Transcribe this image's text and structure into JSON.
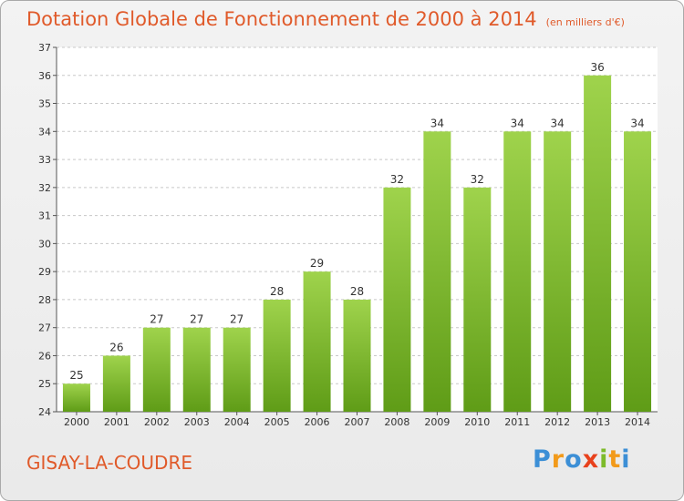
{
  "header": {
    "title": "Dotation Globale de Fonctionnement de 2000 à 2014",
    "subtitle": "(en milliers d'€)"
  },
  "footer": {
    "commune": "GISAY-LA-COUDRE",
    "logo": "Proxiti"
  },
  "colors": {
    "title": "#e05a2a",
    "bar_light": "#9fd34c",
    "bar_dark": "#5f9c17",
    "grid": "#c8c8c8"
  },
  "chart_data": {
    "type": "bar",
    "title": "Dotation Globale de Fonctionnement de 2000 à 2014",
    "subtitle": "(en milliers d'€)",
    "xlabel": "",
    "ylabel": "",
    "categories": [
      "2000",
      "2001",
      "2002",
      "2003",
      "2004",
      "2005",
      "2006",
      "2007",
      "2008",
      "2009",
      "2010",
      "2011",
      "2012",
      "2013",
      "2014"
    ],
    "values": [
      25,
      26,
      27,
      27,
      27,
      28,
      29,
      28,
      32,
      34,
      32,
      34,
      34,
      36,
      34
    ],
    "ylim": [
      24,
      37
    ],
    "yticks": [
      24,
      25,
      26,
      27,
      28,
      29,
      30,
      31,
      32,
      33,
      34,
      35,
      36,
      37
    ],
    "grid": true,
    "data_labels": true,
    "legend": "none"
  }
}
